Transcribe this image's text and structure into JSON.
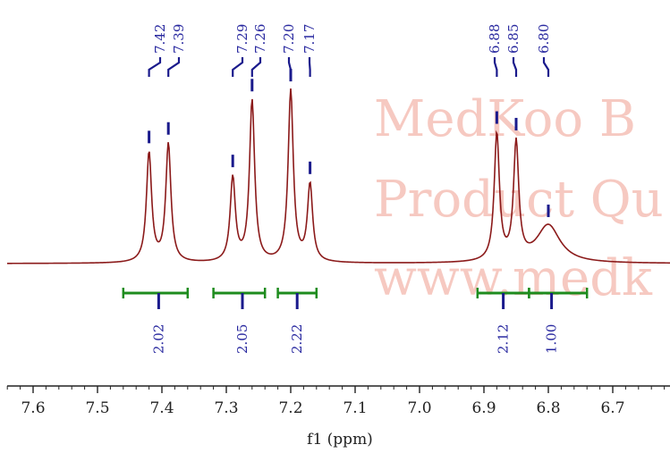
{
  "watermark": {
    "lines": [
      "MedKoo B",
      "Product Qu",
      "www.medk"
    ],
    "color": "#f4b7ad"
  },
  "chart_data": {
    "type": "line",
    "xlabel": "f1 (ppm)",
    "xlim": [
      7.65,
      6.64
    ],
    "x_reversed": true,
    "x_ticks": [
      "7.6",
      "7.5",
      "7.4",
      "7.3",
      "7.2",
      "7.1",
      "7.0",
      "6.9",
      "6.8",
      "6.7"
    ],
    "x_tick_values": [
      7.6,
      7.5,
      7.4,
      7.3,
      7.2,
      7.1,
      7.0,
      6.9,
      6.8,
      6.7
    ],
    "peaks": [
      {
        "ppm": 7.42,
        "label": "7.42",
        "height": 0.64
      },
      {
        "ppm": 7.39,
        "label": "7.39",
        "height": 0.69
      },
      {
        "ppm": 7.29,
        "label": "7.29",
        "height": 0.49
      },
      {
        "ppm": 7.26,
        "label": "7.26",
        "height": 0.94
      },
      {
        "ppm": 7.2,
        "label": "7.20",
        "height": 1.0
      },
      {
        "ppm": 7.17,
        "label": "7.17",
        "height": 0.45
      },
      {
        "ppm": 6.88,
        "label": "6.88",
        "height": 0.74
      },
      {
        "ppm": 6.85,
        "label": "6.85",
        "height": 0.68
      },
      {
        "ppm": 6.8,
        "label": "6.80",
        "height": 0.22
      }
    ],
    "integrals": [
      {
        "start": 7.46,
        "end": 7.36,
        "center": 7.405,
        "value": "2.02"
      },
      {
        "start": 7.32,
        "end": 7.24,
        "center": 7.275,
        "value": "2.05"
      },
      {
        "start": 7.22,
        "end": 7.16,
        "center": 7.19,
        "value": "2.22"
      },
      {
        "start": 6.91,
        "end": 6.83,
        "center": 6.87,
        "value": "2.12"
      },
      {
        "start": 6.83,
        "end": 6.74,
        "center": 6.795,
        "value": "1.00"
      }
    ],
    "colors": {
      "spectrum": "#8b1a1a",
      "peak_marker": "#1a1a8c",
      "integral": "#1e8c1e",
      "axis": "#222222"
    }
  }
}
